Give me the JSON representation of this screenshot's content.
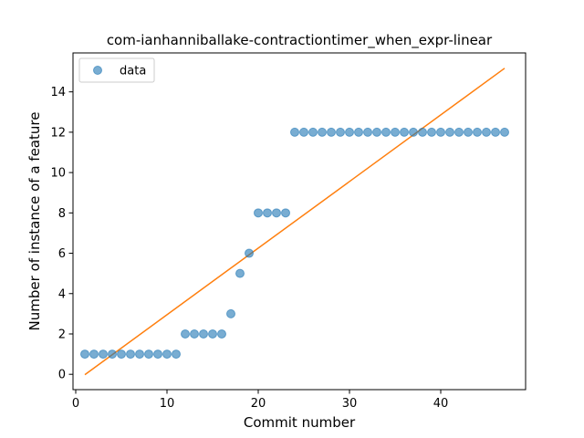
{
  "chart_data": {
    "type": "scatter",
    "title": "com-ianhanniballake-contractiontimer_when_expr-linear",
    "xlabel": "Commit number",
    "ylabel": "Number of instance of a feature",
    "xlim": [
      -0.3,
      49.3
    ],
    "ylim": [
      -0.76,
      15.93
    ],
    "xticks": [
      0,
      10,
      20,
      30,
      40
    ],
    "yticks": [
      0,
      2,
      4,
      6,
      8,
      10,
      12,
      14
    ],
    "grid": false,
    "legend": {
      "location": "upper left",
      "entries": [
        {
          "label": "data",
          "marker": "circle",
          "color": "#1f77b4"
        }
      ]
    },
    "series": [
      {
        "name": "data",
        "kind": "scatter",
        "color": "#1f77b4",
        "opacity": 0.6,
        "points": [
          [
            1,
            1
          ],
          [
            2,
            1
          ],
          [
            3,
            1
          ],
          [
            4,
            1
          ],
          [
            5,
            1
          ],
          [
            6,
            1
          ],
          [
            7,
            1
          ],
          [
            8,
            1
          ],
          [
            9,
            1
          ],
          [
            10,
            1
          ],
          [
            11,
            1
          ],
          [
            12,
            2
          ],
          [
            13,
            2
          ],
          [
            14,
            2
          ],
          [
            15,
            2
          ],
          [
            16,
            2
          ],
          [
            17,
            3
          ],
          [
            18,
            5
          ],
          [
            19,
            6
          ],
          [
            20,
            8
          ],
          [
            21,
            8
          ],
          [
            22,
            8
          ],
          [
            23,
            8
          ],
          [
            24,
            12
          ],
          [
            25,
            12
          ],
          [
            26,
            12
          ],
          [
            27,
            12
          ],
          [
            28,
            12
          ],
          [
            29,
            12
          ],
          [
            30,
            12
          ],
          [
            31,
            12
          ],
          [
            32,
            12
          ],
          [
            33,
            12
          ],
          [
            34,
            12
          ],
          [
            35,
            12
          ],
          [
            36,
            12
          ],
          [
            37,
            12
          ],
          [
            38,
            12
          ],
          [
            39,
            12
          ],
          [
            40,
            12
          ],
          [
            41,
            12
          ],
          [
            42,
            12
          ],
          [
            43,
            12
          ],
          [
            44,
            12
          ],
          [
            45,
            12
          ],
          [
            46,
            12
          ],
          [
            47,
            12
          ]
        ]
      },
      {
        "kind": "line",
        "color": "#ff7f0e",
        "points": [
          [
            1,
            -0.02
          ],
          [
            47,
            15.17
          ]
        ]
      }
    ]
  }
}
